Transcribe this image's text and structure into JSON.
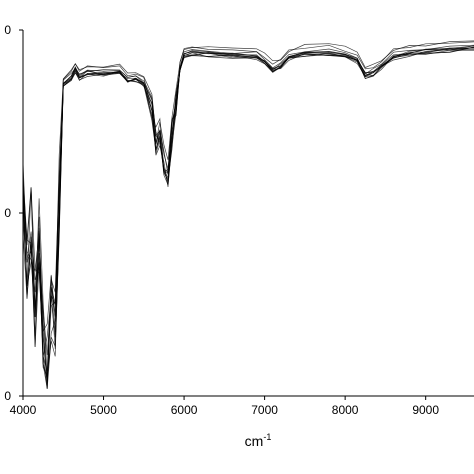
{
  "chart_data": {
    "type": "line",
    "xlabel": "cm",
    "xlabel_superscript": "-1",
    "xlim": [
      4000,
      9600
    ],
    "ylim": [
      0,
      1
    ],
    "x_ticks": [
      4000,
      5000,
      6000,
      7000,
      8000,
      9000
    ],
    "y_tick_labels": [
      "0",
      "0",
      "0"
    ],
    "grid": false,
    "series_count": 12,
    "x": [
      4000,
      4050,
      4100,
      4150,
      4200,
      4250,
      4300,
      4350,
      4400,
      4450,
      4500,
      4600,
      4650,
      4700,
      4800,
      5000,
      5200,
      5300,
      5400,
      5500,
      5600,
      5650,
      5700,
      5750,
      5800,
      5850,
      5900,
      5950,
      6000,
      6100,
      6300,
      6600,
      6900,
      7000,
      7100,
      7200,
      7300,
      7500,
      7800,
      8000,
      8150,
      8250,
      8350,
      8450,
      8600,
      8800,
      9000,
      9300,
      9600
    ],
    "values": [
      0.55,
      0.35,
      0.48,
      0.25,
      0.45,
      0.2,
      0.08,
      0.25,
      0.18,
      0.55,
      0.86,
      0.88,
      0.9,
      0.88,
      0.89,
      0.89,
      0.895,
      0.87,
      0.875,
      0.86,
      0.8,
      0.7,
      0.72,
      0.65,
      0.6,
      0.72,
      0.8,
      0.9,
      0.94,
      0.945,
      0.945,
      0.94,
      0.935,
      0.92,
      0.9,
      0.91,
      0.935,
      0.945,
      0.945,
      0.94,
      0.925,
      0.885,
      0.89,
      0.91,
      0.935,
      0.945,
      0.95,
      0.955,
      0.96
    ]
  }
}
